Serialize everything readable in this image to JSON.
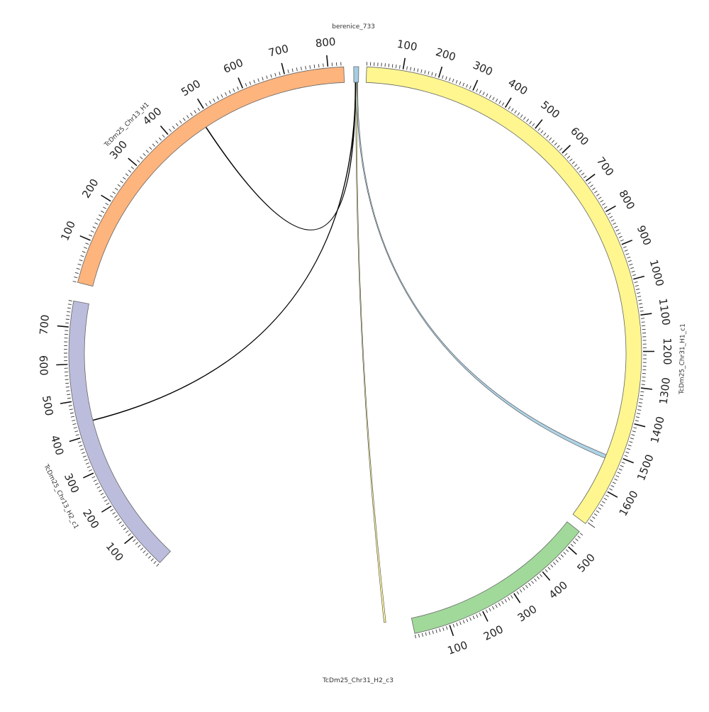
{
  "diagram": {
    "type": "circos",
    "sequences": [
      {
        "name": "berenice_733",
        "color": "#a6cee3",
        "ticks": []
      },
      {
        "name": "TcDm25_Chr31_H1_c1",
        "color": "#fff68f",
        "ticks": [
          "100",
          "200",
          "300",
          "400",
          "500",
          "600",
          "700",
          "800",
          "900",
          "1000",
          "1100",
          "1200",
          "1300",
          "1400",
          "1500",
          "1600"
        ]
      },
      {
        "name": "TcDm25_Chr31_H2_c3",
        "color": "#a1d99b",
        "ticks": [
          "100",
          "200",
          "300",
          "400",
          "500"
        ]
      },
      {
        "name": "TcDm25_Chr13_H2_c1",
        "color": "#bcbddc",
        "ticks": [
          "100",
          "200",
          "300",
          "400",
          "500",
          "600",
          "700"
        ]
      },
      {
        "name": "TcDm25_Chr13_H1",
        "color": "#fdb47d",
        "ticks": [
          "100",
          "200",
          "300",
          "400",
          "500",
          "600",
          "700",
          "800"
        ]
      }
    ],
    "links": [
      {
        "from": "berenice_733",
        "to": "TcDm25_Chr31_H1_c1",
        "color": "#a6cee3"
      },
      {
        "from": "berenice_733",
        "to": "TcDm25_Chr31_H2_c3",
        "color": "#fff68f"
      },
      {
        "from": "berenice_733",
        "to": "TcDm25_Chr13_H2_c1",
        "color": "#000000"
      },
      {
        "from": "berenice_733",
        "to": "TcDm25_Chr13_H1",
        "color": "#000000"
      }
    ]
  }
}
